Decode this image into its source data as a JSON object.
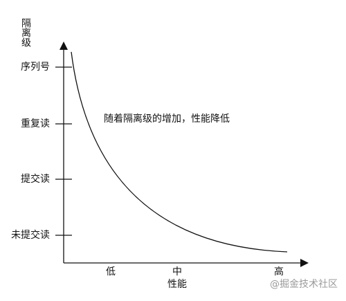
{
  "y_axis": {
    "title": "隔离级",
    "labels": [
      "序列号",
      "重复读",
      "提交读",
      "未提交读"
    ]
  },
  "x_axis": {
    "title": "性能",
    "labels": [
      "低",
      "中",
      "高"
    ]
  },
  "annotation": "随着隔离级的增加，性能降低",
  "watermark": "@掘金技术社区"
}
